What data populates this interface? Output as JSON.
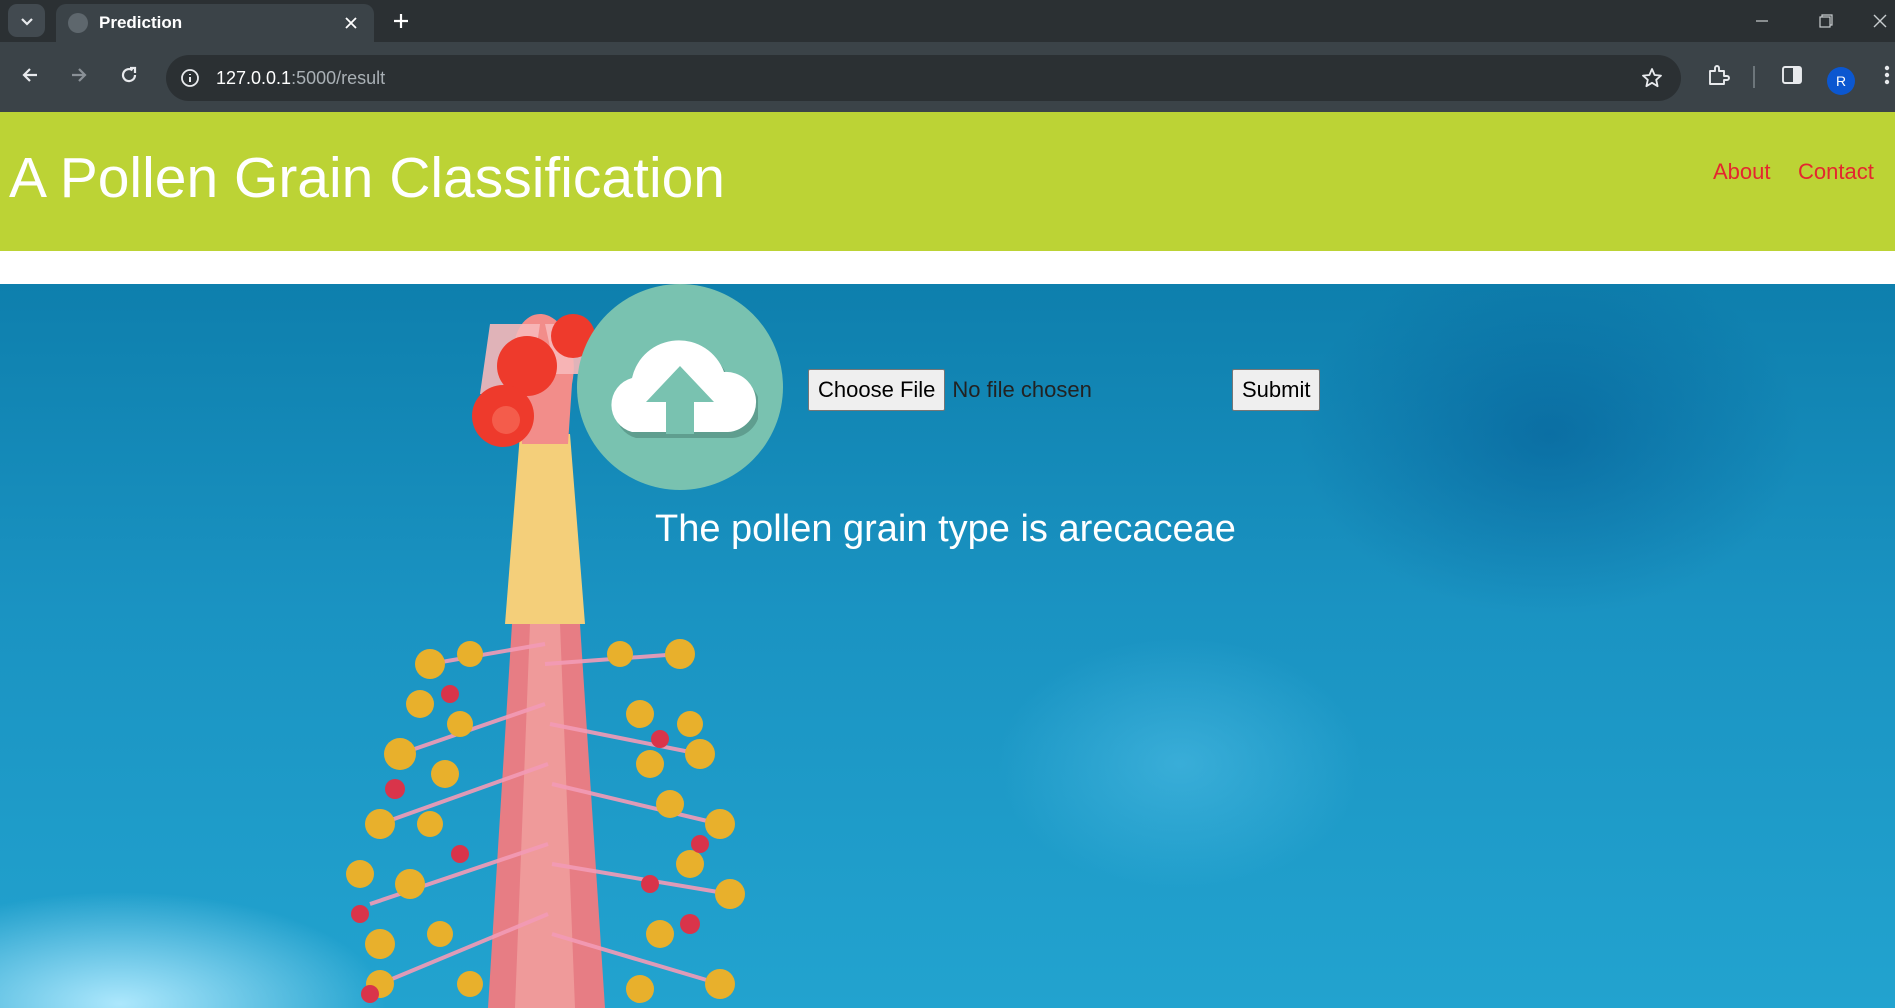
{
  "browser": {
    "tab_title": "Prediction",
    "url_host": "127.0.0.1",
    "url_path": ":5000/result",
    "profile_initial": "R",
    "icons": [
      "tab-search-icon",
      "favicon-icon",
      "close-icon",
      "plus-icon",
      "back-icon",
      "forward-icon",
      "reload-icon",
      "info-icon",
      "star-icon",
      "extensions-icon",
      "side-panel-icon",
      "more-icon",
      "minimize-icon",
      "restore-icon",
      "window-close-icon"
    ]
  },
  "header": {
    "title": "A Pollen Grain Classification",
    "nav": [
      {
        "label": "About"
      },
      {
        "label": "Contact"
      }
    ],
    "background": "#bcd335",
    "link_color": "#e4262f"
  },
  "upload": {
    "icon": "cloud-upload-icon",
    "circle_color": "#79c2b0",
    "choose_label": "Choose File",
    "no_file_text": "No file chosen",
    "submit_label": "Submit"
  },
  "result": {
    "text": "The pollen grain type is arecaceae"
  }
}
